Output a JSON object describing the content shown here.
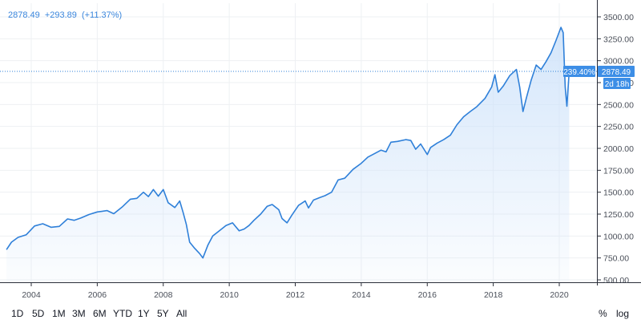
{
  "legend": {
    "last_value": "2878.49",
    "change": "+293.89",
    "change_pct": "(+11.37%)"
  },
  "price_badge": {
    "percent": "239.40%",
    "value": "2878.49",
    "countdown": "2d 18h"
  },
  "toolbar": {
    "ranges": [
      "1D",
      "5D",
      "1M",
      "3M",
      "6M",
      "YTD",
      "1Y",
      "5Y",
      "All"
    ],
    "percent_label": "%",
    "log_label": "log"
  },
  "colors": {
    "line": "#2f80d9",
    "fill_top": "#cfe3fa",
    "badge": "#3d8ee6",
    "grid": "#eef0f3",
    "axis_text": "#4a4f59"
  },
  "chart_data": {
    "type": "area",
    "xlabel": "",
    "ylabel": "",
    "ylim": [
      450,
      3600
    ],
    "y_ticks": [
      500,
      750,
      1000,
      1250,
      1500,
      1750,
      2000,
      2250,
      2500,
      2750,
      3000,
      3250,
      3500
    ],
    "y_tick_labels": [
      "500.00",
      "750.00",
      "1000.00",
      "1250.00",
      "1500.00",
      "1750.00",
      "2000.00",
      "2250.00",
      "2500.00",
      "2750.00",
      "3000.00",
      "3250.00",
      "3500.00"
    ],
    "x_ticks": [
      2004,
      2006,
      2008,
      2010,
      2012,
      2014,
      2016,
      2018,
      2020
    ],
    "x_tick_labels": [
      "2004",
      "2006",
      "2008",
      "2010",
      "2012",
      "2014",
      "2016",
      "2018",
      "2020"
    ],
    "grid": true,
    "reference_value": 2878.49,
    "series": [
      {
        "x": [
          2003.25,
          2003.4,
          2003.6,
          2003.85,
          2004.1,
          2004.35,
          2004.6,
          2004.85,
          2005.1,
          2005.3,
          2005.5,
          2005.75,
          2006.0,
          2006.3,
          2006.5,
          2006.75,
          2007.0,
          2007.2,
          2007.4,
          2007.55,
          2007.7,
          2007.85,
          2008.0,
          2008.15,
          2008.35,
          2008.5,
          2008.6,
          2008.7,
          2008.8,
          2008.95,
          2009.1,
          2009.2,
          2009.35,
          2009.5,
          2009.7,
          2009.9,
          2010.1,
          2010.3,
          2010.45,
          2010.6,
          2010.75,
          2010.95,
          2011.15,
          2011.3,
          2011.5,
          2011.6,
          2011.75,
          2011.9,
          2012.1,
          2012.3,
          2012.4,
          2012.55,
          2012.75,
          2012.9,
          2013.1,
          2013.3,
          2013.5,
          2013.75,
          2014.0,
          2014.2,
          2014.4,
          2014.6,
          2014.75,
          2014.9,
          2015.1,
          2015.35,
          2015.5,
          2015.65,
          2015.8,
          2016.0,
          2016.1,
          2016.3,
          2016.5,
          2016.7,
          2016.9,
          2017.1,
          2017.3,
          2017.5,
          2017.75,
          2017.95,
          2018.05,
          2018.15,
          2018.3,
          2018.5,
          2018.7,
          2018.8,
          2018.9,
          2019.0,
          2019.15,
          2019.3,
          2019.45,
          2019.6,
          2019.75,
          2019.9,
          2020.05,
          2020.12,
          2020.18,
          2020.23,
          2020.3
        ],
        "y": [
          845,
          930,
          985,
          1015,
          1115,
          1140,
          1100,
          1110,
          1195,
          1180,
          1205,
          1245,
          1275,
          1290,
          1255,
          1330,
          1420,
          1430,
          1500,
          1450,
          1530,
          1455,
          1530,
          1380,
          1325,
          1400,
          1270,
          1130,
          930,
          860,
          800,
          750,
          895,
          1000,
          1060,
          1120,
          1150,
          1060,
          1080,
          1120,
          1180,
          1250,
          1340,
          1360,
          1300,
          1200,
          1150,
          1240,
          1350,
          1400,
          1320,
          1410,
          1440,
          1460,
          1500,
          1640,
          1660,
          1760,
          1830,
          1900,
          1940,
          1980,
          1960,
          2070,
          2080,
          2100,
          2090,
          1990,
          2050,
          1930,
          2010,
          2060,
          2100,
          2150,
          2270,
          2360,
          2420,
          2475,
          2570,
          2700,
          2840,
          2640,
          2710,
          2830,
          2900,
          2700,
          2420,
          2570,
          2780,
          2950,
          2900,
          2990,
          3090,
          3230,
          3380,
          3320,
          2700,
          2480,
          2878.49
        ]
      }
    ]
  }
}
